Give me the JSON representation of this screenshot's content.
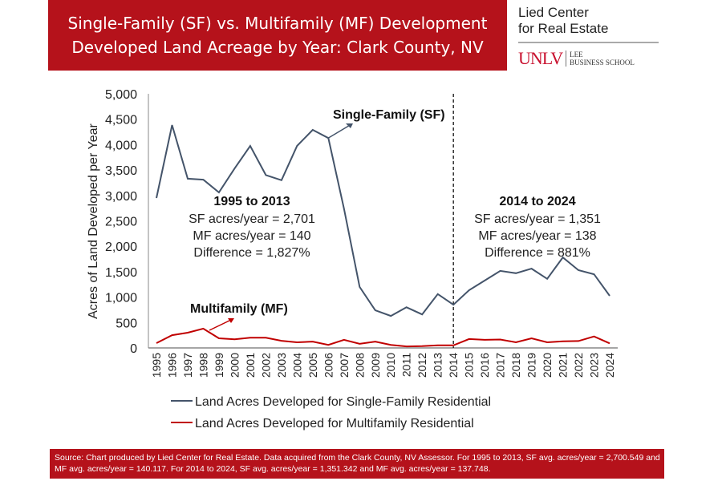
{
  "header": {
    "title_line1": "Single-Family (SF) vs. Multifamily (MF) Development",
    "title_line2": "Developed Land Acreage by Year: Clark County, NV"
  },
  "logo": {
    "line1": "Lied Center",
    "line2": "for Real Estate",
    "unlv": "UNLV",
    "school_line1": "LEE",
    "school_line2": "BUSINESS SCHOOL"
  },
  "footer": {
    "text": "Source: Chart produced by Lied Center for Real Estate. Data acquired from the Clark County, NV Assessor. For 1995 to 2013, SF avg. acres/year = 2,700.549 and MF avg. acres/year = 140.117. For 2014 to 2024, SF avg. acres/year = 1,351.342 and MF avg. acres/year = 137.748."
  },
  "chart_data": {
    "type": "line",
    "ylabel": "Acres of Land Developed per Year",
    "ylim": [
      0,
      5000
    ],
    "yticks": [
      "0",
      "500",
      "1,000",
      "1,500",
      "2,000",
      "2,500",
      "3,000",
      "3,500",
      "4,000",
      "4,500",
      "5,000"
    ],
    "x": [
      1995,
      1996,
      1997,
      1998,
      1999,
      2000,
      2001,
      2002,
      2003,
      2004,
      2005,
      2006,
      2007,
      2008,
      2009,
      2010,
      2011,
      2012,
      2013,
      2014,
      2015,
      2016,
      2017,
      2018,
      2019,
      2020,
      2021,
      2022,
      2023,
      2024
    ],
    "series": [
      {
        "name": "Land Acres Developed for Single-Family Residential",
        "label": "Single-Family (SF)",
        "color": "#44546a",
        "values": [
          2950,
          4385,
          3330,
          3310,
          3060,
          3530,
          3975,
          3400,
          3300,
          3975,
          4290,
          4130,
          2740,
          1200,
          740,
          630,
          800,
          660,
          1060,
          850,
          1135,
          1325,
          1515,
          1470,
          1560,
          1360,
          1780,
          1530,
          1450,
          1025
        ]
      },
      {
        "name": "Land Acres Developed for Multifamily Residential",
        "label": "Multifamily (MF)",
        "color": "#c00000",
        "values": [
          95,
          250,
          300,
          380,
          190,
          170,
          200,
          200,
          140,
          110,
          125,
          60,
          160,
          80,
          125,
          60,
          30,
          35,
          50,
          50,
          175,
          160,
          165,
          110,
          190,
          110,
          130,
          135,
          225,
          90
        ]
      }
    ],
    "divider_year": 2014,
    "annotations": [
      {
        "title": "1995 to 2013",
        "lines": [
          "SF acres/year = 2,701",
          "MF acres/year = 140",
          "Difference = 1,827%"
        ]
      },
      {
        "title": "2014 to 2024",
        "lines": [
          "SF acres/year = 1,351",
          "MF acres/year = 138",
          "Difference = 881%"
        ]
      }
    ],
    "legend": "bottom",
    "grid": false
  }
}
